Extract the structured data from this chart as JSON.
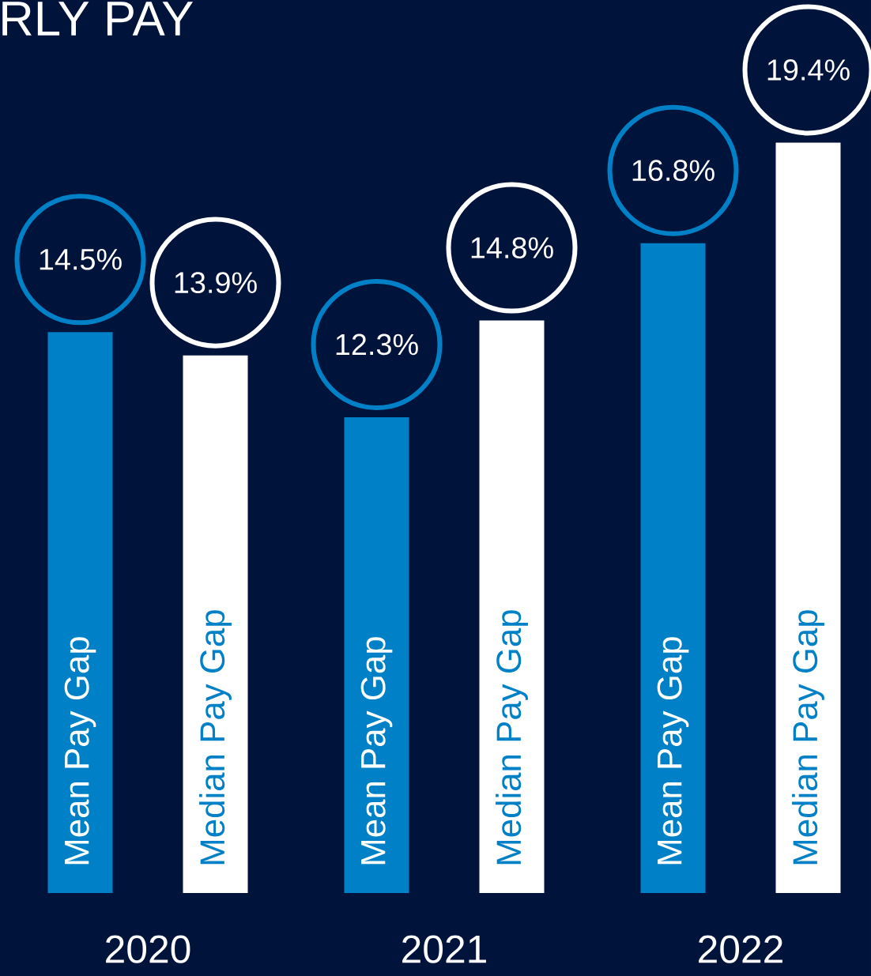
{
  "chart_data": {
    "type": "bar",
    "title": "RLY PAY",
    "categories": [
      "2020",
      "2021",
      "2022"
    ],
    "series": [
      {
        "name": "Mean Pay Gap",
        "color": "#0080c6",
        "values": [
          14.5,
          12.3,
          16.8
        ],
        "value_labels": [
          "14.5%",
          "12.3%",
          "16.8%"
        ]
      },
      {
        "name": "Median Pay Gap",
        "color": "#ffffff",
        "values": [
          13.9,
          14.8,
          19.4
        ],
        "value_labels": [
          "13.9%",
          "14.8%",
          "19.4%"
        ]
      }
    ],
    "legend": false
  }
}
